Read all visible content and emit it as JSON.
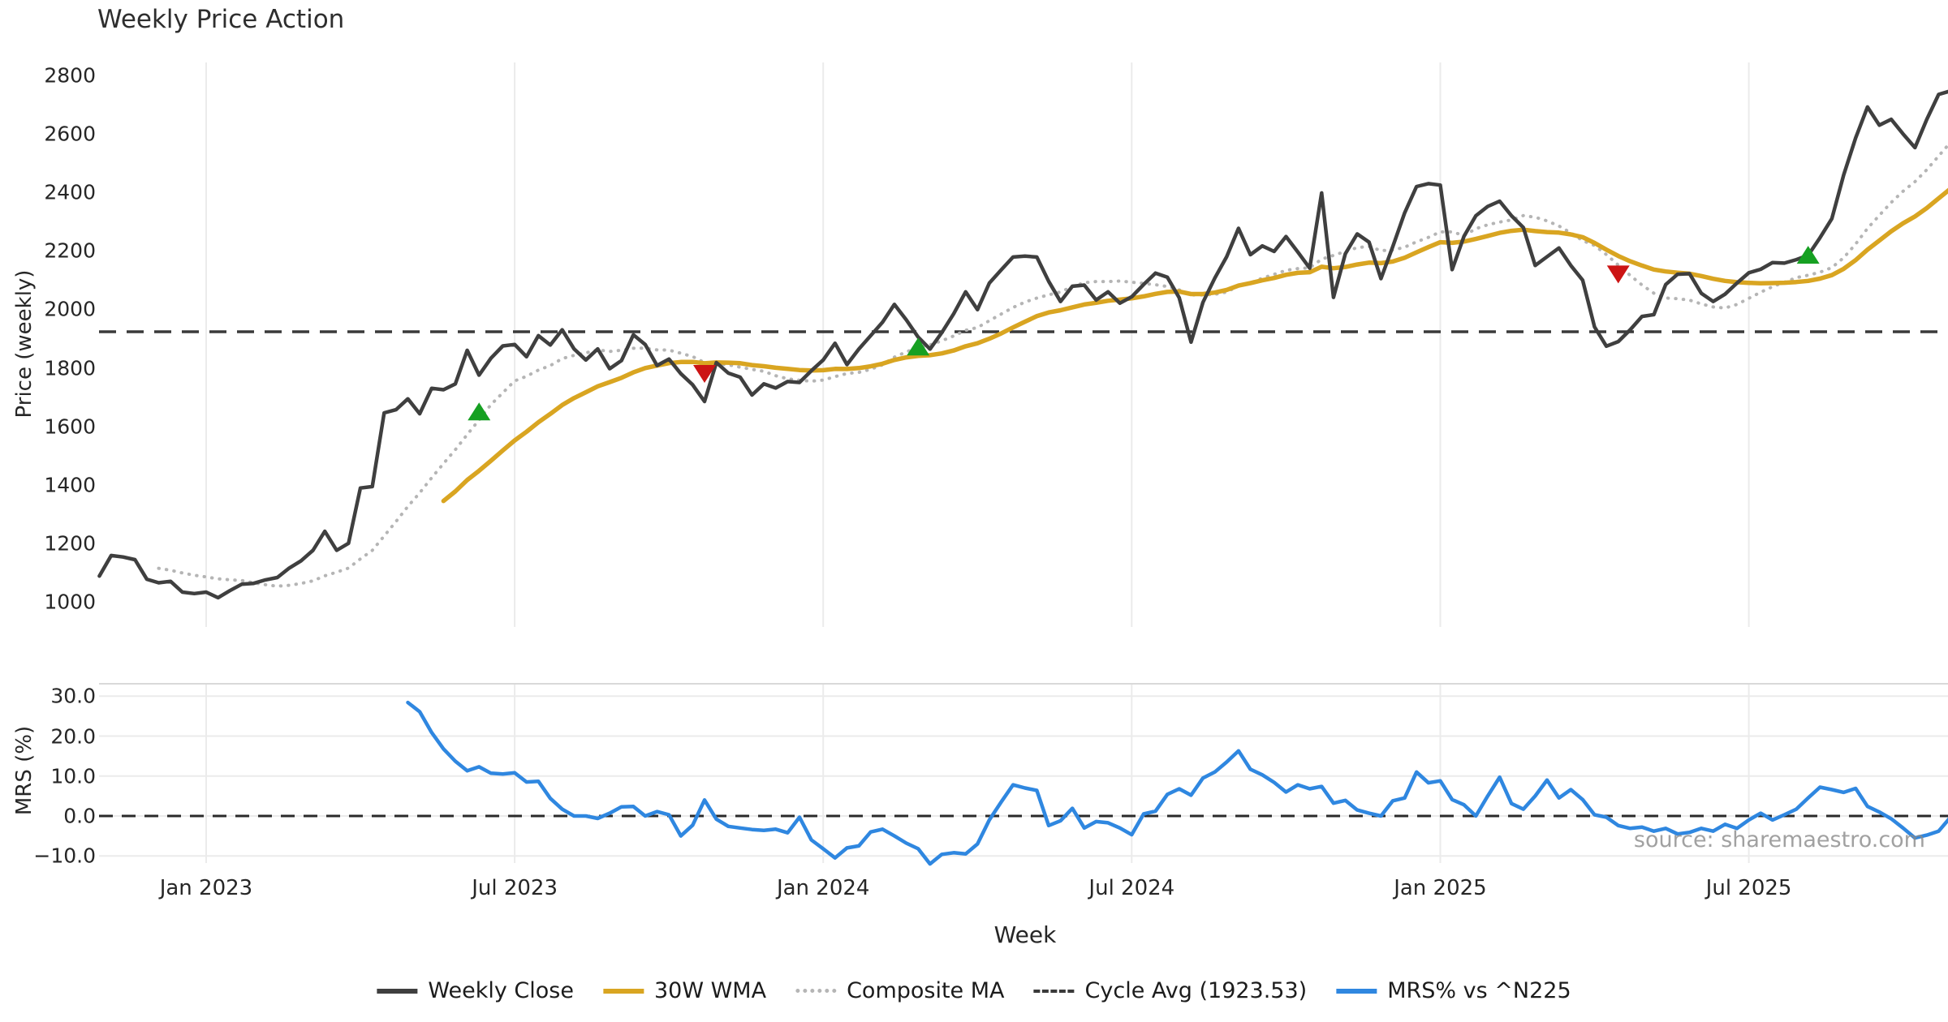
{
  "title": "Weekly Price Action",
  "watermark": "source: sharemaestro.com",
  "colors": {
    "close": "#3f3f3f",
    "wma": "#d9a521",
    "composite": "#b5b5b5",
    "cycle": "#3a3a3a",
    "mrs": "#2f87e0",
    "grid": "#ebebeb",
    "grid_top": "#d9d9d9",
    "buy": "#16a022",
    "sell": "#cc1414"
  },
  "axes": {
    "price": {
      "label": "Price (weekly)",
      "ticks": [
        {
          "v": 2800,
          "label": "2800"
        },
        {
          "v": 2600,
          "label": "2600"
        },
        {
          "v": 2400,
          "label": "2400"
        },
        {
          "v": 2200,
          "label": "2200"
        },
        {
          "v": 2000,
          "label": "2000"
        },
        {
          "v": 1800,
          "label": "1800"
        },
        {
          "v": 1600,
          "label": "1600"
        },
        {
          "v": 1400,
          "label": "1400"
        },
        {
          "v": 1200,
          "label": "1200"
        },
        {
          "v": 1000,
          "label": "1000"
        }
      ]
    },
    "mrs": {
      "label": "MRS (%)",
      "ticks": [
        {
          "v": 30,
          "label": "30.0"
        },
        {
          "v": 20,
          "label": "20.0"
        },
        {
          "v": 10,
          "label": "10.0"
        },
        {
          "v": 0,
          "label": "0.0"
        },
        {
          "v": -10,
          "label": "−10.0"
        }
      ]
    },
    "x": {
      "label": "Week",
      "ticks": [
        {
          "i": 9,
          "label": "Jan 2023"
        },
        {
          "i": 35,
          "label": "Jul 2023"
        },
        {
          "i": 61,
          "label": "Jan 2024"
        },
        {
          "i": 87,
          "label": "Jul 2024"
        },
        {
          "i": 113,
          "label": "Jan 2025"
        },
        {
          "i": 139,
          "label": "Jul 2025"
        }
      ]
    }
  },
  "legend": [
    {
      "id": "close",
      "label": "Weekly Close"
    },
    {
      "id": "wma",
      "label": "30W WMA"
    },
    {
      "id": "comp",
      "label": "Composite MA"
    },
    {
      "id": "cycle",
      "label": "Cycle Avg (1923.53)"
    },
    {
      "id": "mrs",
      "label": "MRS% vs ^N225"
    }
  ],
  "chart_data": {
    "type": "line",
    "title": "Weekly Price Action",
    "xlabel": "Week",
    "x_unit": "weekly, Nov 2022 – Oct 2025",
    "panels": [
      "Price (weekly)",
      "MRS (%)"
    ],
    "price_ylim": [
      940,
      2850
    ],
    "mrs_ylim": [
      -12,
      34
    ],
    "cycle_avg": 1923.53,
    "weekly_close": [
      1088,
      1158,
      1153,
      1144,
      1077,
      1065,
      1070,
      1033,
      1028,
      1033,
      1014,
      1038,
      1060,
      1063,
      1075,
      1083,
      1115,
      1140,
      1176,
      1241,
      1176,
      1200,
      1389,
      1394,
      1646,
      1657,
      1694,
      1643,
      1730,
      1725,
      1745,
      1860,
      1775,
      1833,
      1875,
      1880,
      1838,
      1910,
      1878,
      1930,
      1865,
      1827,
      1865,
      1797,
      1825,
      1913,
      1880,
      1808,
      1830,
      1780,
      1742,
      1685,
      1818,
      1782,
      1768,
      1707,
      1745,
      1731,
      1753,
      1750,
      1790,
      1827,
      1884,
      1811,
      1864,
      1910,
      1956,
      2017,
      1964,
      1905,
      1864,
      1921,
      1985,
      2060,
      1999,
      2090,
      2135,
      2179,
      2182,
      2179,
      2096,
      2027,
      2079,
      2083,
      2032,
      2060,
      2021,
      2043,
      2085,
      2124,
      2110,
      2040,
      1888,
      2024,
      2107,
      2180,
      2277,
      2187,
      2217,
      2198,
      2249,
      2196,
      2141,
      2398,
      2041,
      2190,
      2258,
      2230,
      2105,
      2215,
      2330,
      2420,
      2430,
      2425,
      2136,
      2250,
      2320,
      2352,
      2370,
      2320,
      2280,
      2150,
      2180,
      2210,
      2150,
      2100,
      1940,
      1874,
      1890,
      1930,
      1976,
      1982,
      2085,
      2120,
      2122,
      2055,
      2027,
      2052,
      2090,
      2125,
      2137,
      2160,
      2158,
      2170,
      2185,
      2245,
      2310,
      2460,
      2586,
      2692,
      2630,
      2650,
      2600,
      2553,
      2650,
      2735,
      2747
    ],
    "wma_window": 30,
    "composite_window": 12,
    "composite_start_index": 5,
    "mrs_start_index": 26,
    "mrs_pct": [
      28.4,
      26.1,
      20.9,
      16.8,
      13.7,
      11.3,
      12.3,
      10.7,
      10.5,
      10.8,
      8.5,
      8.7,
      4.4,
      1.7,
      0.0,
      0.0,
      -0.6,
      0.7,
      2.3,
      2.4,
      0.0,
      1.1,
      0.3,
      -5.0,
      -2.3,
      4.0,
      -0.8,
      -2.6,
      -3.0,
      -3.4,
      -3.6,
      -3.3,
      -4.2,
      -0.3,
      -6.0,
      -8.2,
      -10.5,
      -8.0,
      -7.5,
      -4.0,
      -3.3,
      -5.0,
      -6.8,
      -8.2,
      -12.0,
      -9.6,
      -9.2,
      -9.5,
      -7.0,
      -1.0,
      3.5,
      7.8,
      7.0,
      6.4,
      -2.4,
      -1.2,
      1.9,
      -3.0,
      -1.4,
      -1.7,
      -3.0,
      -4.7,
      0.5,
      1.2,
      5.4,
      6.8,
      5.2,
      9.5,
      11.0,
      13.5,
      16.3,
      11.7,
      10.3,
      8.4,
      6.0,
      7.8,
      6.8,
      7.4,
      3.2,
      3.9,
      1.5,
      0.7,
      0.0,
      3.8,
      4.5,
      11.0,
      8.3,
      8.8,
      4.1,
      2.8,
      0.0,
      5.0,
      9.7,
      3.1,
      1.7,
      5.0,
      9.0,
      4.5,
      6.6,
      4.1,
      0.3,
      -0.3,
      -2.4,
      -3.1,
      -2.8,
      -3.8,
      -3.1,
      -4.5,
      -4.1,
      -3.1,
      -3.8,
      -2.1,
      -3.1,
      -1.0,
      0.7,
      -1.0,
      0.3,
      1.7,
      4.5,
      7.2,
      6.6,
      5.9,
      6.9,
      2.4,
      1.0,
      -0.7,
      -3.0,
      -5.5,
      -4.8,
      -3.8,
      -0.3
    ],
    "signals": {
      "buy": [
        {
          "i": 32,
          "v": 1648
        },
        {
          "i": 69,
          "v": 1870
        },
        {
          "i": 144,
          "v": 2184
        }
      ],
      "sell": [
        {
          "i": 51,
          "v": 1782
        },
        {
          "i": 128,
          "v": 2122
        }
      ]
    }
  }
}
